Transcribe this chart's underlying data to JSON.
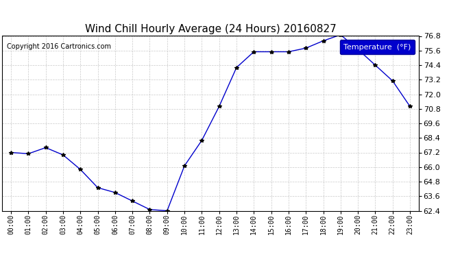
{
  "title": "Wind Chill Hourly Average (24 Hours) 20160827",
  "copyright": "Copyright 2016 Cartronics.com",
  "legend_label": "Temperature  (°F)",
  "x_labels": [
    "00:00",
    "01:00",
    "02:00",
    "03:00",
    "04:00",
    "05:00",
    "06:00",
    "07:00",
    "08:00",
    "09:00",
    "10:00",
    "11:00",
    "12:00",
    "13:00",
    "14:00",
    "15:00",
    "16:00",
    "17:00",
    "18:00",
    "19:00",
    "20:00",
    "21:00",
    "22:00",
    "23:00"
  ],
  "y_values": [
    67.2,
    67.1,
    67.6,
    67.0,
    65.8,
    64.3,
    63.9,
    63.2,
    62.5,
    62.4,
    66.1,
    68.2,
    71.0,
    74.2,
    75.5,
    75.5,
    75.5,
    75.8,
    76.4,
    76.9,
    75.7,
    74.4,
    73.1,
    71.0
  ],
  "ylim_min": 62.4,
  "ylim_max": 76.8,
  "ytick_step": 1.2,
  "line_color": "#0000cc",
  "marker": "*",
  "marker_size": 4,
  "marker_color": "#000000",
  "bg_color": "#ffffff",
  "plot_bg_color": "#ffffff",
  "grid_color": "#bbbbbb",
  "grid_linestyle": "--",
  "title_fontsize": 11,
  "copyright_fontsize": 7,
  "tick_fontsize": 7,
  "legend_bg": "#0000cc",
  "legend_fg": "#ffffff",
  "legend_fontsize": 8
}
